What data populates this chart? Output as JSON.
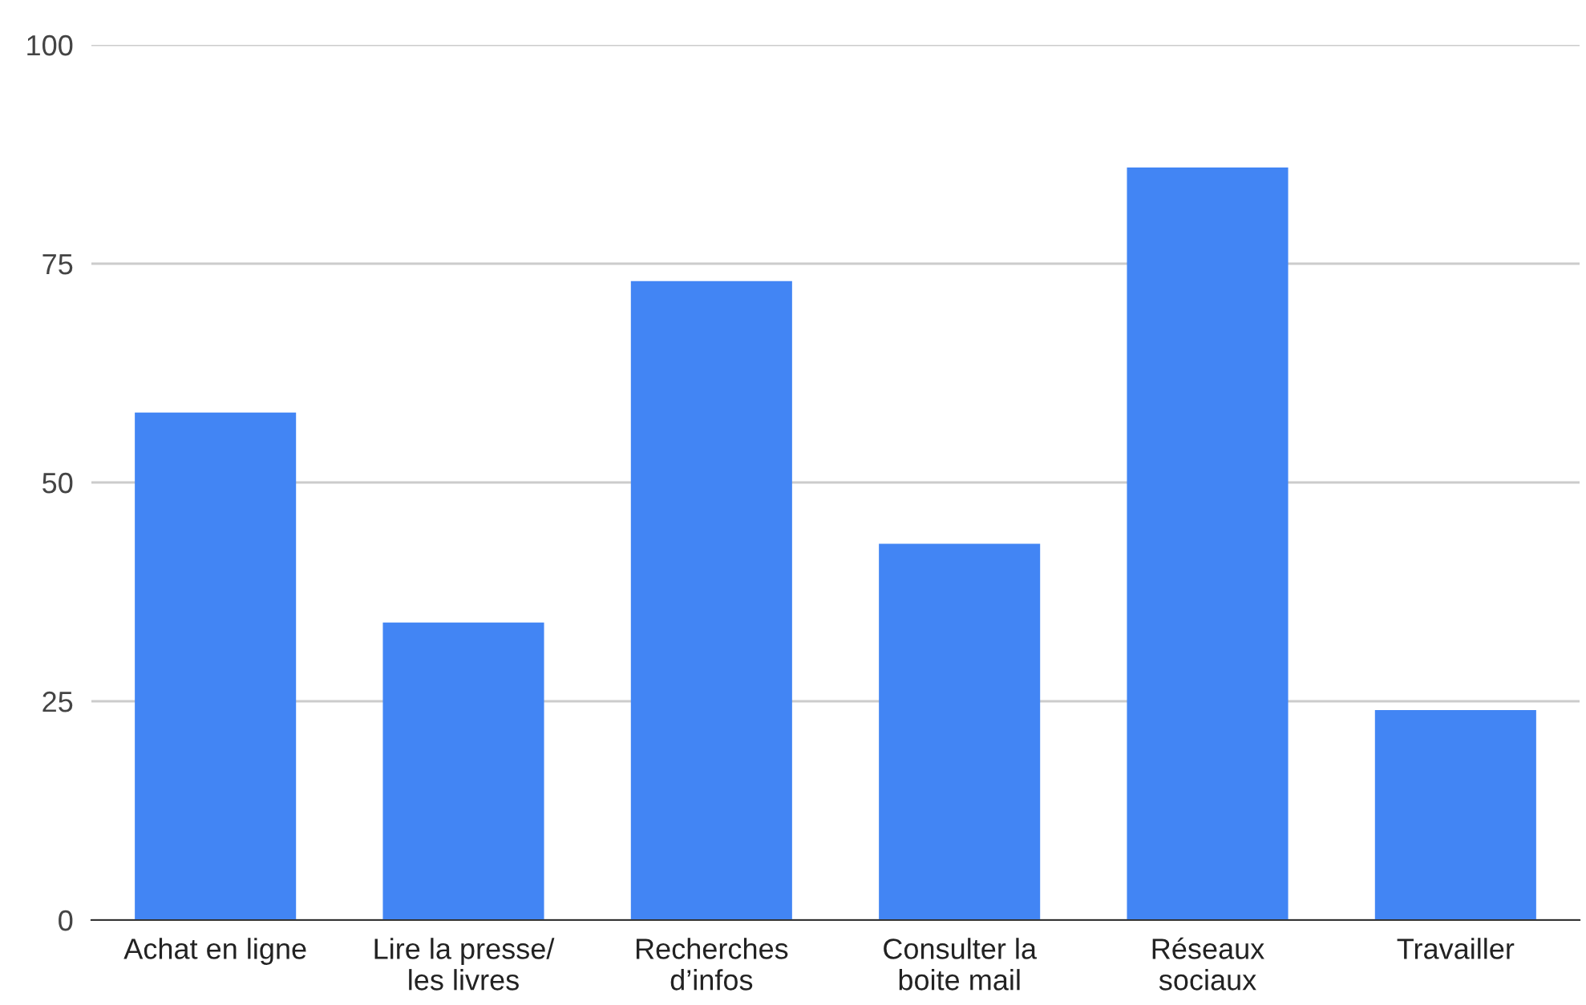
{
  "chart_data": {
    "type": "bar",
    "categories": [
      "Achat en ligne",
      "Lire la presse/\nles livres",
      "Recherches\nd’infos",
      "Consulter la\nboite mail",
      "Réseaux\nsociaux",
      "Travailler"
    ],
    "values": [
      58,
      34,
      73,
      43,
      86,
      24
    ],
    "color": "#4285f4",
    "ylim": [
      0,
      100
    ],
    "yticks": [
      0,
      25,
      50,
      75,
      100
    ],
    "grid": "y"
  }
}
